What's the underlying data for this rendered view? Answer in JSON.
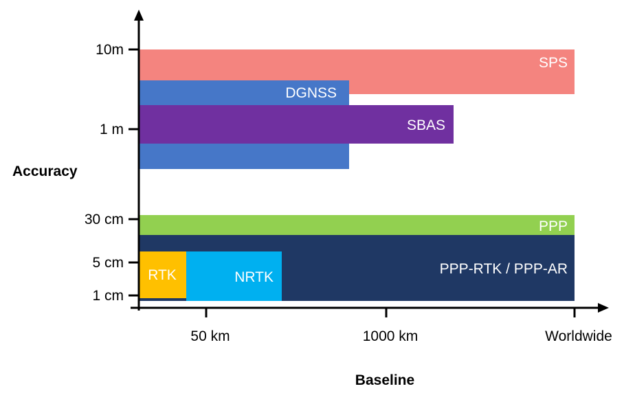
{
  "chart_data": {
    "type": "bar",
    "orientation": "horizontal-ranges",
    "xlabel": "Baseline",
    "ylabel": "Accuracy",
    "x_ticks": [
      "50 km",
      "1000 km",
      "Worldwide"
    ],
    "y_ticks": [
      "10m",
      "1 m",
      "30 cm",
      "5 cm",
      "1 cm"
    ],
    "scale": "ordinal-log-like",
    "series": [
      {
        "name": "SPS",
        "color": "#F4847F",
        "x_range": [
          "0 km",
          "Worldwide"
        ],
        "y_range": [
          "10m",
          "~3 m"
        ]
      },
      {
        "name": "DGNSS",
        "color": "#4677C8",
        "x_range": [
          "0 km",
          "~800 km"
        ],
        "y_range": [
          "~3 m",
          "~0.5 m"
        ]
      },
      {
        "name": "SBAS",
        "color": "#7030A0",
        "x_range": [
          "0 km",
          "~1300 km"
        ],
        "y_range": [
          "~2 m",
          "~0.8 m"
        ]
      },
      {
        "name": "PPP",
        "color": "#92D050",
        "x_range": [
          "0 km",
          "Worldwide"
        ],
        "y_range": [
          "30 cm",
          "~20 cm"
        ]
      },
      {
        "name": "PPP-RTK / PPP-AR",
        "color": "#1F3864",
        "x_range": [
          "0 km",
          "Worldwide"
        ],
        "y_range": [
          "~20 cm",
          "1 cm"
        ]
      },
      {
        "name": "RTK",
        "color": "#FFC000",
        "x_range": [
          "0 km",
          "~20 km"
        ],
        "y_range": [
          "~5 cm",
          "1 cm"
        ]
      },
      {
        "name": "NRTK",
        "color": "#00B0F0",
        "x_range": [
          "~20 km",
          "~100 km"
        ],
        "y_range": [
          "~5 cm",
          "1 cm"
        ]
      }
    ]
  }
}
